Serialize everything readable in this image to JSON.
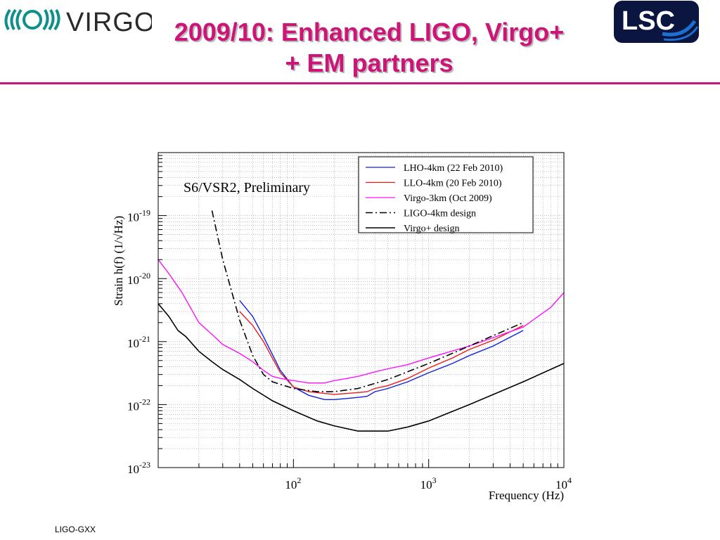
{
  "slide": {
    "title_line1": "2009/10: Enhanced LIGO, Virgo+",
    "title_line2": "+ EM partners",
    "footer": "LIGO-GXX"
  },
  "logos": {
    "virgo_text": "VIRGO",
    "lsc_text": "LSC"
  },
  "colors": {
    "title": "#cc1577",
    "lho": "#1020e0",
    "llo": "#ee1a1a",
    "virgo": "#ff10ff",
    "design": "#000000"
  },
  "chart_data": {
    "type": "line",
    "annotation": "S6/VSR2, Preliminary",
    "xlabel": "Frequency (Hz)",
    "ylabel": "Strain h(f) (1/√Hz)",
    "x_scale": "log",
    "y_scale": "log",
    "xlim": [
      10,
      10000
    ],
    "ylim": [
      1e-23,
      1e-18
    ],
    "x_tick_labels": [
      {
        "base": "10",
        "exp": "2"
      },
      {
        "base": "10",
        "exp": "3"
      },
      {
        "base": "10",
        "exp": "4"
      }
    ],
    "y_tick_labels": [
      {
        "base": "10",
        "exp": "-23"
      },
      {
        "base": "10",
        "exp": "-22"
      },
      {
        "base": "10",
        "exp": "-21"
      },
      {
        "base": "10",
        "exp": "-20"
      },
      {
        "base": "10",
        "exp": "-19"
      }
    ],
    "grid": true,
    "legend_position": "top-right",
    "series": [
      {
        "name": "LHO-4km (22 Feb 2010)",
        "color": "#1020e0",
        "style": "solid",
        "x": [
          40,
          50,
          60,
          80,
          100,
          130,
          170,
          200,
          250,
          300,
          350,
          400,
          500,
          700,
          1000,
          1500,
          2000,
          3000,
          5000
        ],
        "y": [
          4.5e-21,
          2.5e-21,
          1.2e-21,
          3.5e-22,
          1.9e-22,
          1.4e-22,
          1.2e-22,
          1.2e-22,
          1.25e-22,
          1.3e-22,
          1.35e-22,
          1.6e-22,
          1.8e-22,
          2.3e-22,
          3.2e-22,
          4.5e-22,
          6e-22,
          8.5e-22,
          1.5e-21
        ]
      },
      {
        "name": "LLO-4km (20 Feb 2010)",
        "color": "#ee1a1a",
        "style": "solid",
        "x": [
          40,
          50,
          60,
          80,
          100,
          130,
          170,
          200,
          250,
          300,
          350,
          400,
          500,
          700,
          1000,
          1500,
          2000,
          3000,
          5000
        ],
        "y": [
          3e-21,
          1.8e-21,
          1e-21,
          3.2e-22,
          1.9e-22,
          1.6e-22,
          1.5e-22,
          1.45e-22,
          1.5e-22,
          1.55e-22,
          1.6e-22,
          1.8e-22,
          2e-22,
          2.6e-22,
          3.8e-22,
          5.5e-22,
          7.5e-22,
          1.05e-21,
          1.8e-21
        ]
      },
      {
        "name": "Virgo-3km (Oct 2009)",
        "color": "#ff10ff",
        "style": "solid",
        "x": [
          10,
          12,
          15,
          20,
          25,
          30,
          40,
          50,
          60,
          70,
          80,
          100,
          130,
          170,
          200,
          250,
          300,
          400,
          500,
          700,
          1000,
          2000,
          5000,
          8000,
          10000
        ],
        "y": [
          2e-20,
          1.2e-20,
          6e-21,
          2e-21,
          1.3e-21,
          9e-22,
          6.5e-22,
          4.8e-22,
          3.5e-22,
          2.8e-22,
          2.6e-22,
          2.4e-22,
          2.2e-22,
          2.2e-22,
          2.4e-22,
          2.6e-22,
          2.8e-22,
          3.3e-22,
          3.7e-22,
          4.3e-22,
          5.5e-22,
          8.5e-22,
          1.7e-21,
          3.5e-21,
          6e-21
        ]
      },
      {
        "name": "LIGO-4km  design",
        "color": "#000000",
        "style": "dashdot",
        "x": [
          25,
          30,
          40,
          50,
          60,
          70,
          100,
          150,
          200,
          300,
          500,
          1000,
          2000,
          5000
        ],
        "y": [
          1.2e-19,
          2e-20,
          2.2e-21,
          6e-22,
          3e-22,
          2.3e-22,
          1.8e-22,
          1.6e-22,
          1.6e-22,
          1.8e-22,
          2.5e-22,
          4.5e-22,
          8.5e-22,
          2e-21
        ]
      },
      {
        "name": "Virgo+ design",
        "color": "#000000",
        "style": "solid",
        "x": [
          10,
          12,
          14,
          16,
          20,
          25,
          30,
          40,
          50,
          70,
          100,
          150,
          200,
          300,
          500,
          700,
          1000,
          2000,
          5000,
          10000
        ],
        "y": [
          4e-21,
          2.5e-21,
          1.5e-21,
          1.2e-21,
          7e-22,
          4.8e-22,
          3.6e-22,
          2.5e-22,
          1.8e-22,
          1.15e-22,
          8e-23,
          5.5e-23,
          4.6e-23,
          3.8e-23,
          3.8e-23,
          4.4e-23,
          5.5e-23,
          1e-22,
          2.3e-22,
          4.5e-22
        ]
      }
    ]
  }
}
